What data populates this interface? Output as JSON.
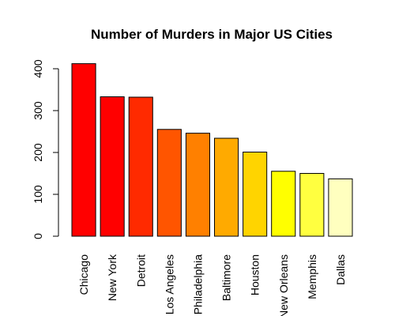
{
  "chart_data": {
    "type": "bar",
    "title": "Number of Murders in Major US Cities",
    "xlabel": "",
    "ylabel": "",
    "categories": [
      "Chicago",
      "New York",
      "Detroit",
      "Los Angeles",
      "Philadelphia",
      "Baltimore",
      "Houston",
      "New Orleans",
      "Memphis",
      "Dallas"
    ],
    "values": [
      412,
      333,
      332,
      255,
      246,
      234,
      201,
      155,
      150,
      137
    ],
    "colors": [
      "#FF0000",
      "#FF0000",
      "#FF2A00",
      "#FF5500",
      "#FF8000",
      "#FFAA00",
      "#FFD400",
      "#FFFF00",
      "#FFFF40",
      "#FFFFBF"
    ],
    "ylim": [
      0,
      430
    ],
    "yticks": [
      0,
      100,
      200,
      300,
      400
    ],
    "grid": false,
    "legend": "none"
  }
}
